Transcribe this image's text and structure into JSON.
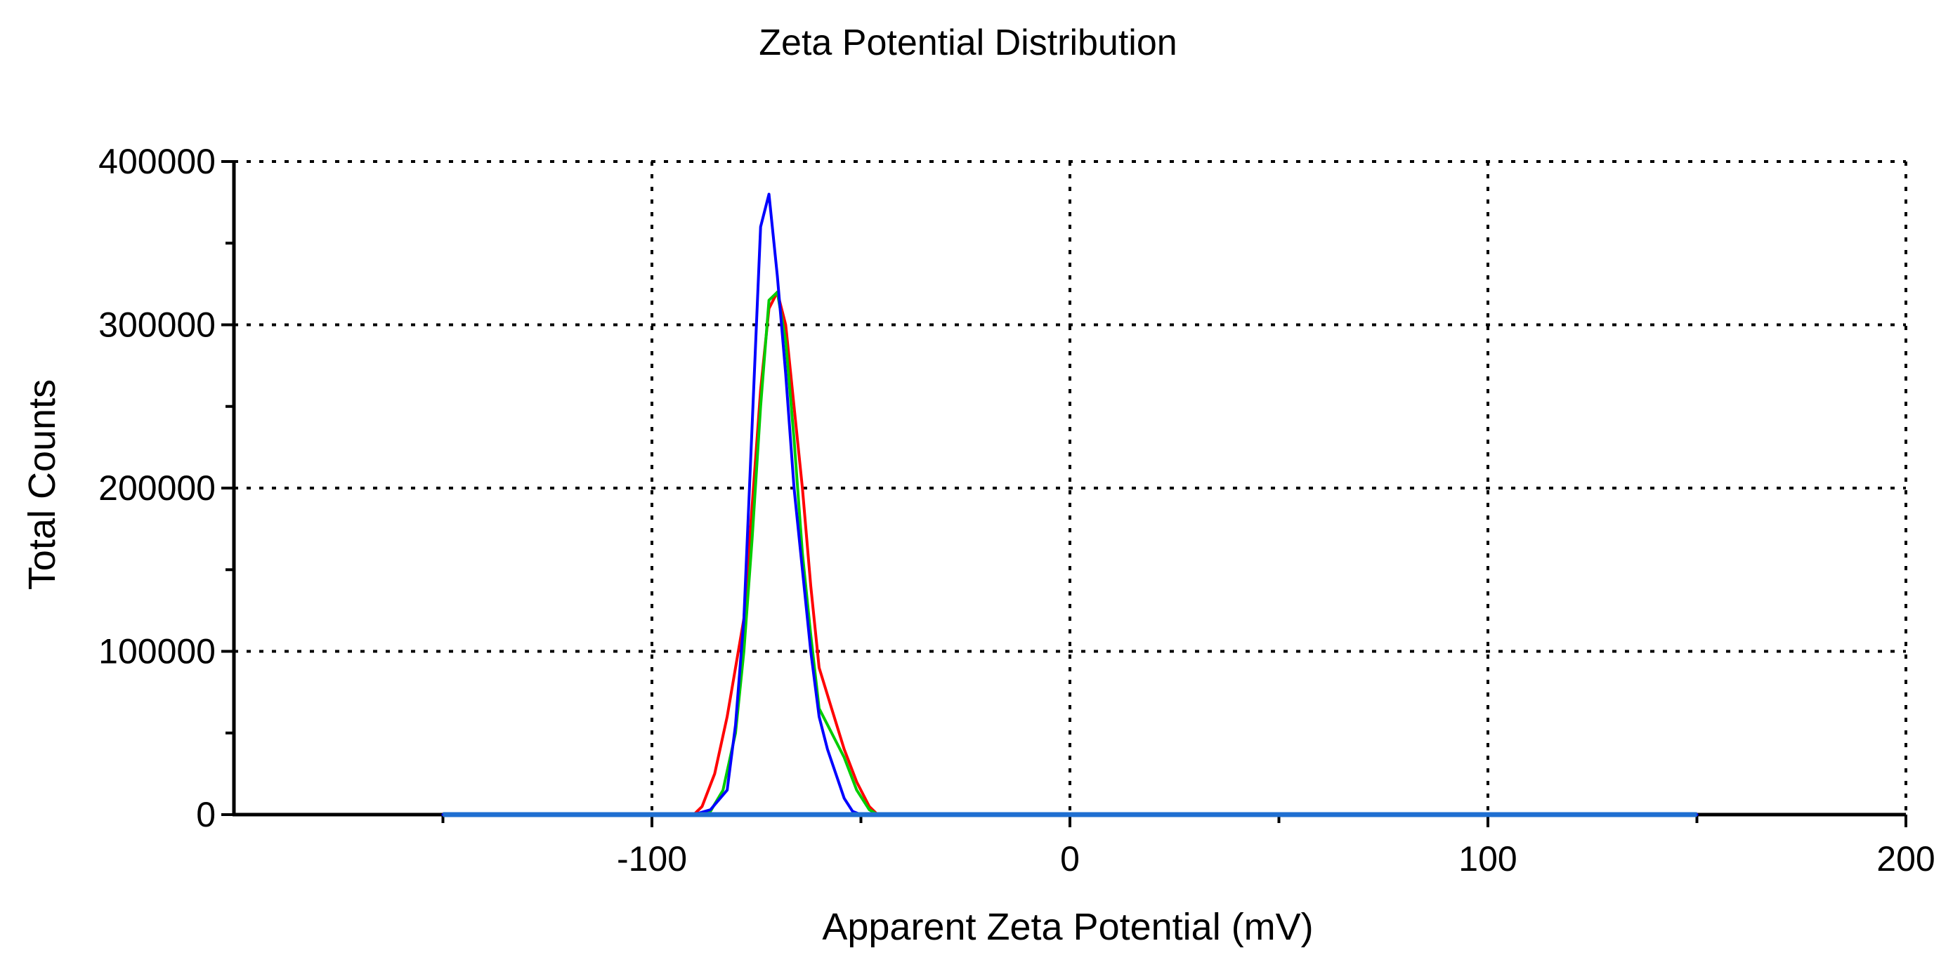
{
  "chart_data": {
    "type": "line",
    "title": "Zeta Potential Distribution",
    "xlabel": "Apparent Zeta Potential (mV)",
    "ylabel": "Total Counts",
    "xlim": [
      -200,
      200
    ],
    "ylim": [
      0,
      400000
    ],
    "x_ticks": [
      -100,
      0,
      100,
      200
    ],
    "x_minor_ticks": [
      -150,
      -50,
      50,
      150
    ],
    "y_ticks": [
      0,
      100000,
      200000,
      300000,
      400000
    ],
    "y_minor_ticks": [
      50000,
      150000,
      250000,
      350000
    ],
    "x_tick_labels": [
      "-100",
      "0",
      "100",
      "200"
    ],
    "y_tick_labels": [
      "0",
      "100000",
      "200000",
      "300000",
      "400000"
    ],
    "grid": true,
    "legend": "none",
    "series": [
      {
        "color": "#ff0000",
        "x": [
          -150,
          -90,
          -88,
          -85,
          -82,
          -80,
          -78,
          -76,
          -74,
          -72,
          -70,
          -68,
          -66,
          -64,
          -62,
          -60,
          -57,
          -54,
          -51,
          -48,
          -46,
          -44,
          150
        ],
        "y": [
          0,
          0,
          5000,
          25000,
          60000,
          90000,
          120000,
          190000,
          260000,
          310000,
          320000,
          300000,
          250000,
          200000,
          140000,
          90000,
          65000,
          40000,
          20000,
          5000,
          0,
          0,
          0
        ]
      },
      {
        "color": "#00cc00",
        "x": [
          -150,
          -90,
          -86,
          -83,
          -80,
          -78,
          -76,
          -74,
          -72,
          -70,
          -68,
          -66,
          -64,
          -62,
          -60,
          -58,
          -56,
          -54,
          -51,
          -48,
          -46,
          -44,
          150
        ],
        "y": [
          0,
          0,
          2000,
          15000,
          50000,
          100000,
          170000,
          250000,
          315000,
          320000,
          290000,
          230000,
          160000,
          110000,
          65000,
          55000,
          45000,
          35000,
          15000,
          3000,
          0,
          0,
          0
        ]
      },
      {
        "color": "#0000ff",
        "x": [
          -150,
          -90,
          -86,
          -82,
          -80,
          -78,
          -76,
          -74,
          -72,
          -70,
          -68,
          -66,
          -64,
          -62,
          -60,
          -58,
          -56,
          -54,
          -52,
          -50,
          -48,
          -46,
          150
        ],
        "y": [
          0,
          0,
          3000,
          15000,
          55000,
          120000,
          240000,
          360000,
          380000,
          330000,
          270000,
          200000,
          150000,
          100000,
          60000,
          40000,
          25000,
          10000,
          2000,
          0,
          0,
          0,
          0
        ]
      }
    ],
    "baseline_band": {
      "color": "#1f6fd1",
      "x_range": [
        -150,
        150
      ],
      "y": 0
    }
  }
}
